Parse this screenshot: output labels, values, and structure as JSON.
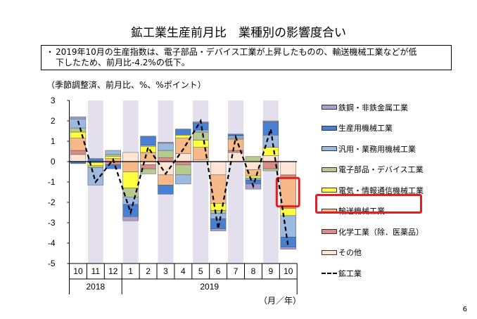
{
  "title": "鉱工業生産前月比　業種別の影響度合い",
  "note": {
    "bullet": "・",
    "line1": "2019年10月の生産指数は、電子部品・デバイス工業が上昇したものの、輸送機械工業などが低",
    "line2": "下したため、前月比-4.2%の低下。"
  },
  "page_number": "6",
  "chart_data": {
    "type": "bar",
    "subtype": "stacked-bar-with-line",
    "units_label": "（季節調整済、前月比、%、%ポイント）",
    "period_label": "（月／年）",
    "categories": [
      "10",
      "11",
      "12",
      "1",
      "2",
      "3",
      "4",
      "5",
      "6",
      "7",
      "8",
      "9",
      "10"
    ],
    "years": [
      {
        "label": "2018",
        "from": 0,
        "to": 2
      },
      {
        "label": "2019",
        "from": 3,
        "to": 12
      }
    ],
    "ylim": [
      -5,
      3
    ],
    "yticks": [
      "3",
      "2",
      "1",
      "0",
      "-1",
      "-2",
      "-3",
      "-4",
      "-5"
    ],
    "highlight": {
      "category_index": 12,
      "series": "輸送機械工業"
    },
    "series": [
      {
        "name": "その他",
        "color": "#fde4d4",
        "values": [
          0.35,
          0,
          0,
          0.45,
          -0.15,
          -0.65,
          0.4,
          0.1,
          -0.65,
          0.45,
          -0.4,
          0.3,
          -0.65
        ]
      },
      {
        "name": "化学工業（除．医薬品）",
        "color": "#d98c8a",
        "values": [
          0.2,
          0,
          -0.15,
          0,
          -0.2,
          0.2,
          -0.15,
          0,
          0,
          0.1,
          0,
          -0.35,
          -0.05
        ]
      },
      {
        "name": "輸送機械工業",
        "color": "#f7b98a",
        "values": [
          0.6,
          -0.05,
          0.15,
          -0.5,
          0.45,
          -0.5,
          0.75,
          0.6,
          -1.4,
          0.55,
          -0.3,
          0,
          -1.6
        ]
      },
      {
        "name": "電気・情報通信機械工業",
        "color": "#ffff40",
        "values": [
          0.3,
          -0.15,
          0.1,
          -0.8,
          0.3,
          0,
          0.15,
          0.35,
          -0.35,
          0,
          -0.1,
          0.4,
          -0.35
        ]
      },
      {
        "name": "電子部品・デバイス工業",
        "color": "#b6ca8f",
        "values": [
          0.2,
          -0.1,
          0.1,
          -0.45,
          -0.25,
          0.35,
          -0.5,
          0.4,
          -0.15,
          0.05,
          0.25,
          -0.1,
          0
        ]
      },
      {
        "name": "汎用・業務用機械工業",
        "color": "#9cb9e0",
        "values": [
          0.45,
          -0.85,
          0.2,
          -0.35,
          0.05,
          0.35,
          -0.45,
          0.1,
          -0.25,
          0.1,
          -0.1,
          0.6,
          -1.05
        ]
      },
      {
        "name": "生産用機械工業",
        "color": "#4a80d2",
        "values": [
          -0.1,
          0.15,
          -0.2,
          -0.6,
          0.45,
          -0.45,
          0.3,
          0.35,
          -0.5,
          0.1,
          -0.2,
          0.65,
          -0.5
        ]
      },
      {
        "name": "鉄鋼・非鉄金属工業",
        "color": "#a9a1cc",
        "values": [
          0.1,
          0,
          0,
          -0.2,
          0,
          0.05,
          0,
          0.05,
          -0.1,
          0,
          -0.25,
          0.05,
          -0.1
        ]
      }
    ],
    "line": {
      "name": "鉱工業",
      "values": [
        2.0,
        -1.0,
        0.1,
        -2.5,
        0.7,
        -0.6,
        0.6,
        2.0,
        -3.3,
        1.2,
        -1.2,
        1.6,
        -4.2
      ]
    }
  }
}
